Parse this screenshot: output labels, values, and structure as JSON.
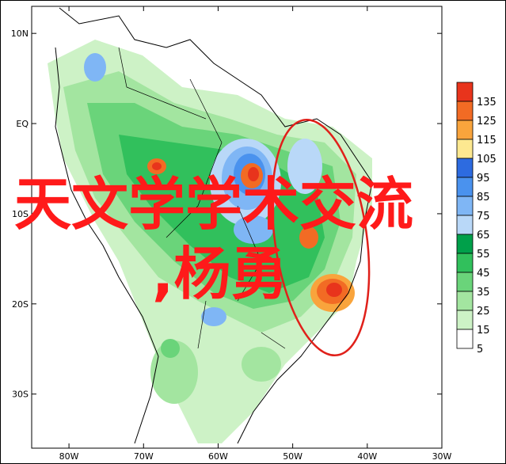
{
  "map": {
    "lat_labels": [
      "10N",
      "EQ",
      "10S",
      "20S",
      "30S"
    ],
    "lon_labels": [
      "80W",
      "70W",
      "60W",
      "50W",
      "40W",
      "30W"
    ],
    "lat_values": [
      10,
      0,
      -10,
      -20,
      -30
    ],
    "lon_values": [
      -80,
      -70,
      -60,
      -50,
      -40,
      -30
    ],
    "extent": {
      "lon_min": -85,
      "lon_max": -30,
      "lat_min": -36,
      "lat_max": 13
    }
  },
  "legend": {
    "levels": [
      "135",
      "125",
      "115",
      "105",
      "95",
      "85",
      "75",
      "65",
      "55",
      "45",
      "35",
      "25",
      "15",
      "5"
    ],
    "colors": [
      "#e8341c",
      "#f26b24",
      "#f9a43c",
      "#fde890",
      "#2d6be0",
      "#4a92ee",
      "#7fb6f5",
      "#b9d8f8",
      "#00a04a",
      "#31c05c",
      "#6ad47a",
      "#a3e5a0",
      "#cdf2c6",
      "#ffffff"
    ]
  },
  "watermark": {
    "line1": "天文学学术交流",
    "line2": ",杨勇"
  },
  "colors": {
    "annotation_ellipse": "#e0201a",
    "coast": "#000000"
  }
}
